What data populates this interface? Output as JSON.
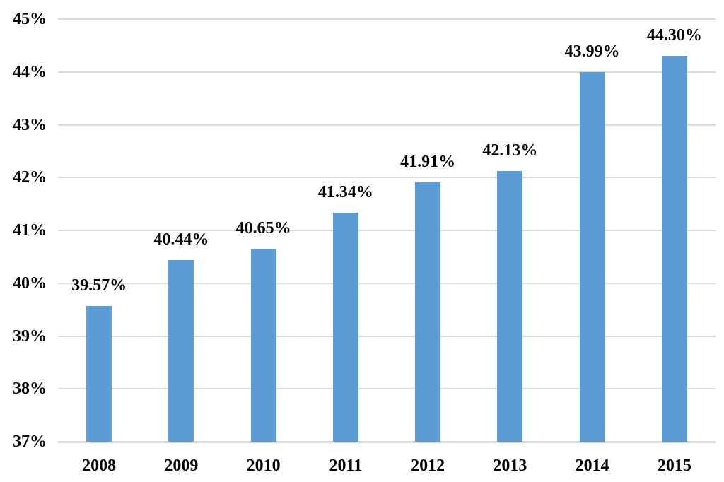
{
  "chart_data": {
    "type": "bar",
    "title": "",
    "xlabel": "",
    "ylabel": "",
    "categories": [
      "2008",
      "2009",
      "2010",
      "2011",
      "2012",
      "2013",
      "2014",
      "2015"
    ],
    "values": [
      39.57,
      40.44,
      40.65,
      41.34,
      41.91,
      42.13,
      43.99,
      44.3
    ],
    "value_labels": [
      "39.57%",
      "40.44%",
      "40.65%",
      "41.34%",
      "41.91%",
      "42.13%",
      "43.99%",
      "44.30%"
    ],
    "ylim": [
      37,
      45
    ],
    "ytick_values": [
      45,
      44,
      43,
      42,
      41,
      40,
      39,
      38,
      37
    ],
    "ytick_labels": [
      "45%",
      "44%",
      "43%",
      "42%",
      "41%",
      "40%",
      "39%",
      "38%",
      "37%"
    ],
    "grid": true,
    "legend": false,
    "colors": {
      "bar_fill": "#5B9BD5",
      "gridline": "#D9D9D9",
      "axis_line": "#D9D9D9",
      "text": "#000000",
      "background": "#FFFFFF"
    }
  }
}
